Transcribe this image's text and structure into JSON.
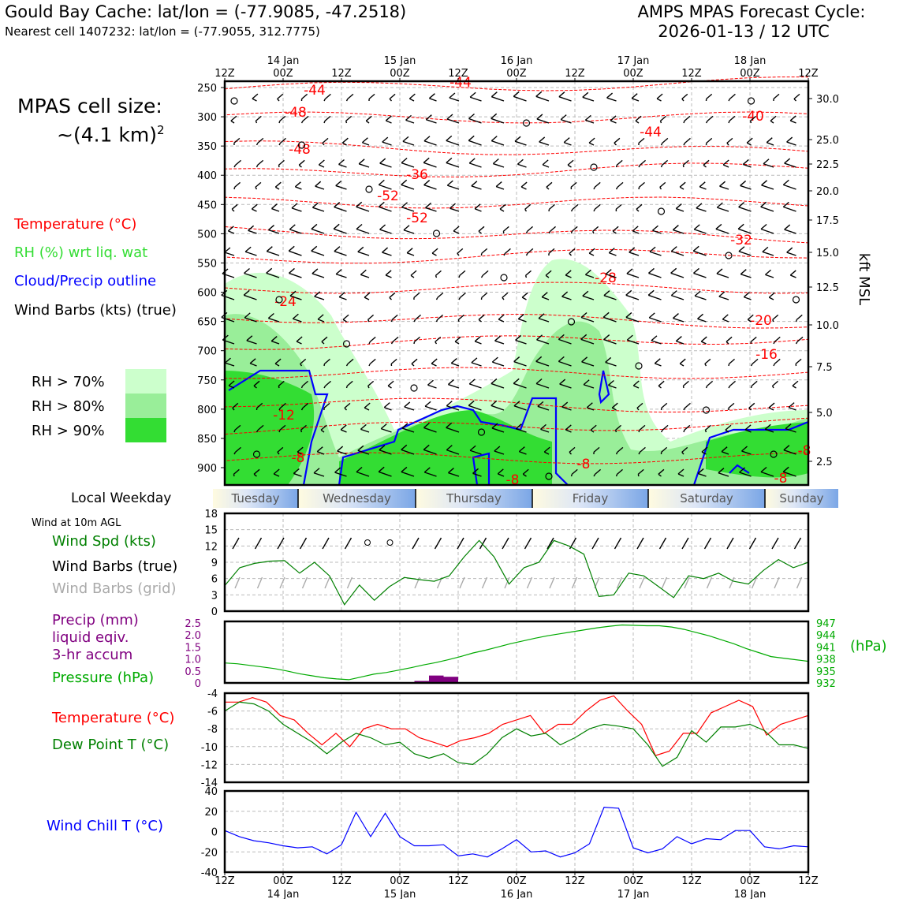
{
  "header": {
    "title_left": "Gould Bay Cache: lat/lon = (-77.9085, -47.2518)",
    "subtitle_left": "Nearest cell 1407232: lat/lon = (-77.9055, 312.7775)",
    "title_right": "AMPS MPAS Forecast Cycle:",
    "cycle_right": "2026-01-13 / 12 UTC"
  },
  "cell_size": {
    "line1": "MPAS cell size:",
    "line2_prefix": "~(4.1 km)",
    "line2_sup": "2"
  },
  "legend_main": [
    {
      "label": "Temperature (°C)",
      "color": "#ff0000"
    },
    {
      "label": "RH (%) wrt liq. wat",
      "color": "#33dd33"
    },
    {
      "label": "Cloud/Precip outline",
      "color": "#0000ff"
    },
    {
      "label": "Wind Barbs (kts) (true)",
      "color": "#000000"
    }
  ],
  "rh_legend": [
    {
      "label": "RH > 70%",
      "color": "#ccffcc"
    },
    {
      "label": "RH > 80%",
      "color": "#99ee99"
    },
    {
      "label": "RH > 90%",
      "color": "#33dd33"
    }
  ],
  "weekday": {
    "label": "Local Weekday",
    "days": [
      "Tuesday",
      "Wednesday",
      "Thursday",
      "Friday",
      "Saturday",
      "Sunday"
    ]
  },
  "wind_panel_labels": {
    "note": "Wind at 10m AGL",
    "spd": "Wind Spd (kts)",
    "barbs_true": "Wind Barbs (true)",
    "barbs_grid": "Wind Barbs (grid)"
  },
  "precip_labels": {
    "l1": "Precip (mm)",
    "l2": "liquid eqiv.",
    "l3": "3-hr accum",
    "pres": "Pressure (hPa)",
    "hpa": "(hPa)"
  },
  "temp_labels": {
    "temp": "Temperature (°C)",
    "dew": "Dew Point T (°C)"
  },
  "chill_labels": {
    "chill": "Wind Chill T (°C)"
  },
  "chart_data": [
    {
      "type": "heatmap",
      "description_note": "time-height cross section",
      "x_top_ticks": [
        "12Z",
        "00Z",
        "12Z",
        "00Z",
        "12Z",
        "00Z",
        "12Z",
        "00Z",
        "12Z",
        "00Z",
        "12Z"
      ],
      "x_date_labels": [
        "14 Jan",
        "15 Jan",
        "16 Jan",
        "17 Jan",
        "18 Jan"
      ],
      "y_pressure_ticks": [
        250,
        300,
        350,
        400,
        450,
        500,
        550,
        600,
        650,
        700,
        750,
        800,
        850,
        900
      ],
      "y_right_kft": [
        "30.0",
        "25.0",
        "22.5",
        "20.0",
        "17.5",
        "15.0",
        "12.5",
        "10.0",
        "7.5",
        "5.0",
        "2.5"
      ],
      "y_right_label": "kft MSL",
      "temp_contour_labels": [
        "-44",
        "-44",
        "-48",
        "-48",
        "-44",
        "-40",
        "-36",
        "-52",
        "-52",
        "-32",
        "-28",
        "-24",
        "-20",
        "-16",
        "-12",
        "-8",
        "-8",
        "-8",
        "-8",
        "-8"
      ]
    },
    {
      "type": "line",
      "ylim": [
        0,
        18
      ],
      "yticks": [
        0,
        3,
        6,
        9,
        12,
        15,
        18
      ],
      "series": [
        {
          "name": "Wind Spd (kts)",
          "values": [
            4.7,
            8.0,
            8.8,
            9.2,
            9.3,
            7.0,
            9.0,
            6.5,
            1.2,
            4.8,
            2.0,
            4.5,
            6.2,
            5.8,
            5.5,
            6.5,
            10.0,
            13.0,
            10.0,
            5.0,
            8.0,
            9.0,
            13.0,
            12.0,
            10.5,
            2.7,
            3.0,
            7.0,
            6.5,
            4.5,
            2.5,
            6.5,
            6.0,
            7.0,
            5.5,
            5.0,
            7.5,
            9.5,
            8.0,
            9.0
          ]
        }
      ]
    },
    {
      "type": "bar",
      "precip_ticks": [
        "0",
        "0.5",
        "1.0",
        "1.5",
        "2.0",
        "2.5"
      ],
      "pressure_ticks": [
        "932",
        "935",
        "938",
        "941",
        "944",
        "947"
      ],
      "precip_values": [
        0,
        0,
        0,
        0,
        0,
        0,
        0,
        0,
        0,
        0,
        0,
        0,
        0,
        0.08,
        0.3,
        0.25,
        0,
        0,
        0,
        0,
        0,
        0,
        0,
        0,
        0,
        0,
        0,
        0,
        0,
        0,
        0,
        0,
        0,
        0,
        0,
        0,
        0,
        0,
        0,
        0
      ],
      "pressure_values": [
        937,
        936.8,
        936.4,
        936,
        935.6,
        935,
        934.3,
        933.8,
        933.3,
        933.0,
        932.8,
        933.5,
        934.2,
        934.6,
        935.2,
        935.8,
        936.5,
        937.1,
        937.8,
        938.6,
        939.5,
        940.2,
        941,
        941.8,
        942.5,
        943.2,
        943.8,
        944.3,
        944.8,
        945.3,
        945.8,
        946.2,
        946.5,
        946.4,
        946.3,
        946.3,
        946.0,
        945.4,
        944.6,
        943.8,
        942.8,
        941.8,
        940.6,
        939.6,
        938.6,
        938.2,
        937.8,
        937.4
      ]
    },
    {
      "type": "line",
      "ylim": [
        -14,
        -4
      ],
      "yticks": [
        -14,
        -12,
        -10,
        -8,
        -6,
        -4
      ],
      "series": [
        {
          "name": "Temperature (°C)",
          "values": [
            -5.0,
            -5.0,
            -4.5,
            -5.0,
            -6.5,
            -7.0,
            -8.5,
            -9.8,
            -8.5,
            -10.0,
            -8.0,
            -7.5,
            -8.0,
            -8.0,
            -9.0,
            -9.5,
            -10.0,
            -9.3,
            -9.0,
            -8.5,
            -7.5,
            -7.0,
            -6.5,
            -8.5,
            -7.5,
            -7.5,
            -6.0,
            -4.8,
            -4.3,
            -6.0,
            -7.5,
            -11.0,
            -10.5,
            -8.5,
            -8.5,
            -6.2,
            -5.5,
            -4.8,
            -5.5,
            -8.7,
            -7.5,
            -7.0,
            -6.5
          ]
        },
        {
          "name": "Dew Point T (°C)",
          "values": [
            -6.0,
            -5.0,
            -5.2,
            -6.0,
            -7.5,
            -8.5,
            -9.5,
            -10.8,
            -9.5,
            -8.5,
            -9.0,
            -9.8,
            -9.5,
            -10.8,
            -11.3,
            -10.8,
            -11.8,
            -12.0,
            -10.8,
            -9.0,
            -8.0,
            -8.8,
            -8.5,
            -9.8,
            -9.0,
            -8.0,
            -7.5,
            -7.7,
            -8.0,
            -9.8,
            -12.2,
            -11.2,
            -8.2,
            -9.5,
            -7.8,
            -7.8,
            -7.5,
            -8.2,
            -9.8,
            -9.8,
            -10.2
          ]
        }
      ]
    },
    {
      "type": "line",
      "ylim": [
        -40,
        40
      ],
      "yticks": [
        -40,
        -20,
        0,
        20,
        40
      ],
      "x_bottom_ticks": [
        "12Z",
        "00Z",
        "12Z",
        "00Z",
        "12Z",
        "00Z",
        "12Z",
        "00Z",
        "12Z",
        "00Z",
        "12Z"
      ],
      "x_date_labels": [
        "14 Jan",
        "15 Jan",
        "16 Jan",
        "17 Jan",
        "18 Jan"
      ],
      "series": [
        {
          "name": "Wind Chill T (°C)",
          "values": [
            1,
            -5,
            -9,
            -11,
            -14,
            -16,
            -15,
            -22,
            -13,
            19,
            -5,
            18,
            -5,
            -14,
            -14,
            -13,
            -24,
            -22,
            -25,
            -17,
            -8,
            -20,
            -19,
            -25,
            -21,
            -12,
            24,
            23,
            -16,
            -21,
            -17,
            -5,
            -12,
            -7,
            -8,
            1,
            1,
            -15,
            -17,
            -14,
            -15
          ]
        }
      ]
    }
  ]
}
